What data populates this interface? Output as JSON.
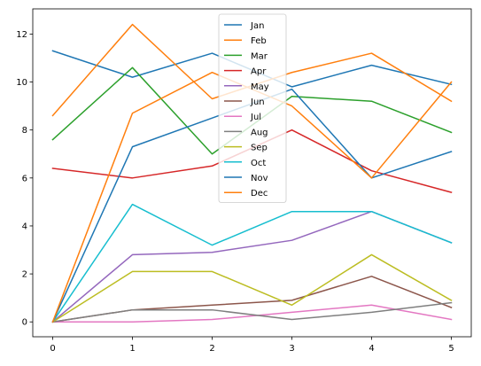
{
  "chart_data": {
    "type": "line",
    "title": "",
    "xlabel": "",
    "ylabel": "",
    "x": [
      0,
      1,
      2,
      3,
      4,
      5
    ],
    "xlim": [
      -0.25,
      5.25
    ],
    "ylim": [
      -0.62,
      13.05
    ],
    "xticks": [
      0,
      1,
      2,
      3,
      4,
      5
    ],
    "yticks": [
      0,
      2,
      4,
      6,
      8,
      10,
      12
    ],
    "grid": false,
    "legend_position": "upper-center",
    "series": [
      {
        "name": "Jan",
        "color": "#1f77b4",
        "values": [
          11.3,
          10.2,
          11.2,
          9.8,
          10.7,
          9.9
        ]
      },
      {
        "name": "Feb",
        "color": "#ff7f0e",
        "values": [
          8.6,
          12.4,
          9.3,
          10.4,
          11.2,
          9.2
        ]
      },
      {
        "name": "Mar",
        "color": "#2ca02c",
        "values": [
          7.6,
          10.6,
          7.0,
          9.4,
          9.2,
          7.9
        ]
      },
      {
        "name": "Apr",
        "color": "#d62728",
        "values": [
          6.4,
          6.0,
          6.5,
          8.0,
          6.3,
          5.4
        ]
      },
      {
        "name": "May",
        "color": "#9467bd",
        "values": [
          0.0,
          2.8,
          2.9,
          3.4,
          4.6,
          3.3
        ]
      },
      {
        "name": "Jun",
        "color": "#8c564b",
        "values": [
          0.0,
          0.5,
          0.7,
          0.9,
          1.9,
          0.6
        ]
      },
      {
        "name": "Jul",
        "color": "#e377c2",
        "values": [
          0.0,
          0.0,
          0.1,
          0.4,
          0.7,
          0.1
        ]
      },
      {
        "name": "Aug",
        "color": "#7f7f7f",
        "values": [
          0.0,
          0.5,
          0.5,
          0.1,
          0.4,
          0.8
        ]
      },
      {
        "name": "Sep",
        "color": "#bcbd22",
        "values": [
          0.0,
          2.1,
          2.1,
          0.7,
          2.8,
          0.9
        ]
      },
      {
        "name": "Oct",
        "color": "#17becf",
        "values": [
          0.0,
          4.9,
          3.2,
          4.6,
          4.6,
          3.3
        ]
      },
      {
        "name": "Nov",
        "color": "#1f77b4",
        "values": [
          0.0,
          7.3,
          8.5,
          9.7,
          6.0,
          7.1
        ]
      },
      {
        "name": "Dec",
        "color": "#ff7f0e",
        "values": [
          0.0,
          8.7,
          10.4,
          9.0,
          6.0,
          10.0
        ]
      }
    ]
  }
}
